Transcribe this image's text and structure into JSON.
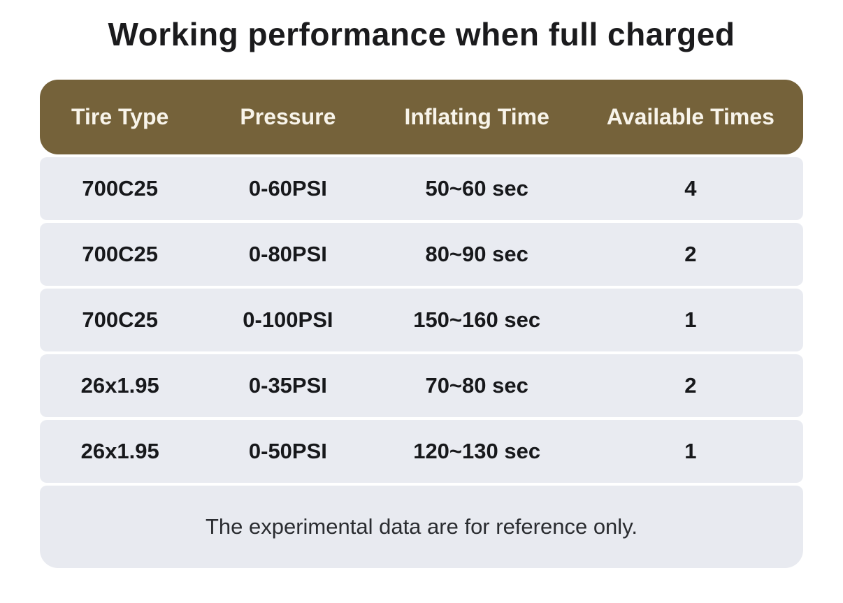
{
  "title": "Working performance when full charged",
  "table": {
    "columns": [
      "Tire Type",
      "Pressure",
      "Inflating Time",
      "Available Times"
    ],
    "rows": [
      [
        "700C25",
        "0-60PSI",
        "50~60 sec",
        "4"
      ],
      [
        "700C25",
        "0-80PSI",
        "80~90 sec",
        "2"
      ],
      [
        "700C25",
        "0-100PSI",
        "150~160 sec",
        "1"
      ],
      [
        "26x1.95",
        "0-35PSI",
        "70~80 sec",
        "2"
      ],
      [
        "26x1.95",
        "0-50PSI",
        "120~130 sec",
        "1"
      ]
    ],
    "footnote": "The experimental data are for reference only."
  },
  "colors": {
    "header_bg": "#75623a",
    "header_text": "#f8f4ea",
    "row_bg": "#e9ebf1",
    "footer_bg": "#e8eaf0",
    "cell_text": "#17181b",
    "title_text": "#1b1b1d",
    "footnote_text": "#2a2c30",
    "page_bg": "#ffffff"
  },
  "chart_data": {
    "type": "table",
    "title": "Working performance when full charged",
    "columns": [
      "Tire Type",
      "Pressure",
      "Inflating Time",
      "Available Times"
    ],
    "rows": [
      [
        "700C25",
        "0-60PSI",
        "50~60 sec",
        "4"
      ],
      [
        "700C25",
        "0-80PSI",
        "80~90 sec",
        "2"
      ],
      [
        "700C25",
        "0-100PSI",
        "150~160 sec",
        "1"
      ],
      [
        "26x1.95",
        "0-35PSI",
        "70~80 sec",
        "2"
      ],
      [
        "26x1.95",
        "0-50PSI",
        "120~130 sec",
        "1"
      ]
    ],
    "footnote": "The experimental data are for reference only.",
    "layout_hints": {
      "header_style": "brown rounded bar, white bold text",
      "row_style": "light blue-gray rounded cards with thin white gaps",
      "alignment": "all columns centered"
    }
  }
}
